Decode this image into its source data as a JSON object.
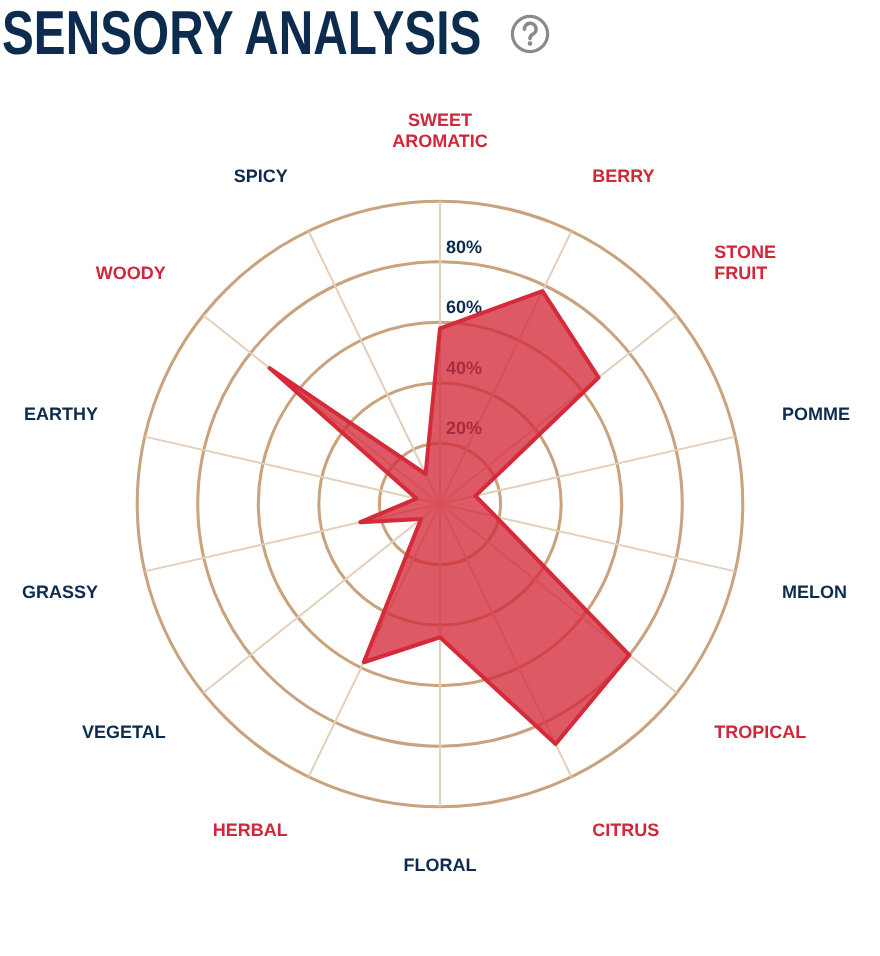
{
  "chart_data": {
    "type": "radar",
    "title": "SENSORY ANALYSIS",
    "categories": [
      "SWEET AROMATIC",
      "BERRY",
      "STONE FRUIT",
      "POMME",
      "MELON",
      "TROPICAL",
      "CITRUS",
      "FLORAL",
      "HERBAL",
      "VEGETAL",
      "GRASSY",
      "EARTHY",
      "WOODY",
      "SPICY"
    ],
    "colors": [
      "#d0283a",
      "#d0283a",
      "#d0283a",
      "#0d2b4d",
      "#0d2b4d",
      "#d0283a",
      "#d0283a",
      "#0d2b4d",
      "#d0283a",
      "#0d2b4d",
      "#0d2b4d",
      "#0d2b4d",
      "#d0283a",
      "#0d2b4d"
    ],
    "series": [
      {
        "color": "#d42a3a",
        "values": [
          58,
          78,
          67,
          12,
          19,
          80,
          88,
          44,
          58,
          8,
          27,
          8,
          72,
          11
        ]
      }
    ],
    "ylim": [
      0,
      100
    ],
    "yticks": [
      {
        "value": 20,
        "label": "20%"
      },
      {
        "value": 40,
        "label": "40%"
      },
      {
        "value": 60,
        "label": "60%"
      },
      {
        "value": 80,
        "label": "80%"
      }
    ],
    "grid": true
  }
}
